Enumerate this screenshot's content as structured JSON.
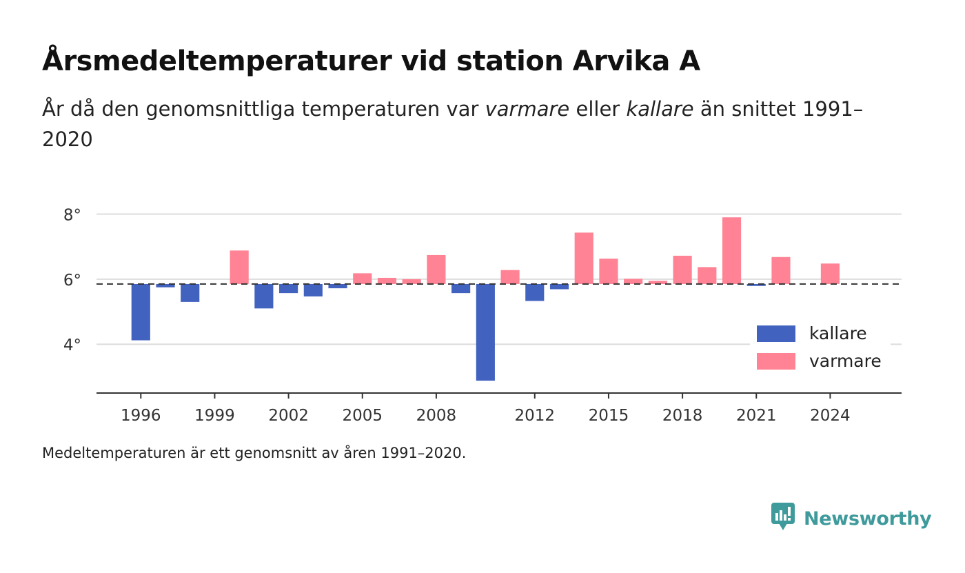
{
  "title": "Årsmedeltemperaturer vid station Arvika A",
  "subtitle": {
    "part1": "År då den genomsnittliga temperaturen var ",
    "warm_word": "varmare",
    "part2": " eller ",
    "cold_word": "kallare",
    "part3": " än snittet 1991–2020"
  },
  "footnote": "Medeltemperaturen är ett genomsnitt av åren 1991–2020.",
  "logo": {
    "text": "Newsworthy",
    "icon": "newsworthy-chart-bubble-icon"
  },
  "colors": {
    "kallare": "#4262bf",
    "varmare": "#ff8394",
    "grid": "#dddddd",
    "axis": "#333333",
    "brand": "#3f9a9b"
  },
  "chart_data": {
    "type": "bar",
    "baseline": 5.85,
    "baseline_style": "dashed",
    "ylim": [
      2.5,
      8.9
    ],
    "yticks": [
      4,
      6,
      8
    ],
    "ytick_labels": [
      "4°",
      "6°",
      "8°"
    ],
    "xticks": [
      1996,
      1999,
      2002,
      2005,
      2008,
      2012,
      2015,
      2018,
      2021,
      2024
    ],
    "xtick_labels": [
      "1996",
      "1999",
      "2002",
      "2005",
      "2008",
      "2012",
      "2015",
      "2018",
      "2021",
      "2024"
    ],
    "xlim": [
      1994.2,
      2026.9
    ],
    "grid": true,
    "legend_position": "bottom-right",
    "series": [
      {
        "name": "kallare",
        "color": "#4262bf"
      },
      {
        "name": "varmare",
        "color": "#ff8394"
      }
    ],
    "x": [
      1996,
      1997,
      1998,
      1999,
      2000,
      2001,
      2002,
      2003,
      2004,
      2005,
      2006,
      2007,
      2008,
      2009,
      2010,
      2011,
      2012,
      2013,
      2014,
      2015,
      2016,
      2017,
      2018,
      2019,
      2020,
      2021,
      2022,
      2023,
      2024
    ],
    "values": [
      4.12,
      5.75,
      5.3,
      null,
      6.88,
      5.1,
      5.57,
      5.47,
      5.72,
      6.18,
      6.04,
      6.0,
      6.74,
      5.57,
      2.88,
      6.28,
      5.33,
      5.69,
      7.43,
      6.63,
      6.01,
      5.95,
      6.72,
      6.37,
      7.9,
      5.79,
      6.68,
      null,
      6.48
    ]
  }
}
